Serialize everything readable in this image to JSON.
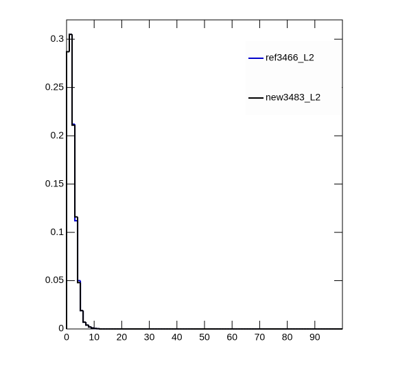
{
  "chart_data": {
    "type": "histogram",
    "bins": [
      0,
      1,
      2,
      3,
      4,
      5,
      6,
      7,
      8,
      9,
      10,
      11,
      12,
      13,
      14,
      15,
      16,
      17,
      18,
      19,
      20,
      21,
      22,
      23,
      24,
      25,
      26,
      27,
      28,
      29,
      30,
      31,
      32,
      33,
      34,
      35,
      36,
      37,
      38,
      39,
      40,
      41,
      42,
      43,
      44,
      45,
      46,
      47,
      48,
      49,
      50,
      51,
      52,
      53,
      54,
      55,
      56,
      57,
      58,
      59,
      60,
      61,
      62,
      63,
      64,
      65,
      66,
      67,
      68,
      69,
      70,
      71,
      72,
      73,
      74,
      75,
      76,
      77,
      78,
      79,
      80,
      81,
      82,
      83,
      84,
      85,
      86,
      87,
      88,
      89,
      90,
      91,
      92,
      93,
      94,
      95,
      96,
      97,
      98,
      99,
      100
    ],
    "series": [
      {
        "name": "ref3466_L2",
        "color": "#0000cc",
        "values": [
          0.287,
          0.305,
          0.212,
          0.112,
          0.05,
          0.019,
          0.007,
          0.004,
          0.002,
          0.001,
          0.0005,
          0.0003,
          0,
          0,
          0,
          0,
          0,
          0,
          0,
          0,
          0,
          0,
          0,
          0,
          0,
          0,
          0,
          0,
          0,
          0,
          0,
          0,
          0,
          0,
          0,
          0,
          0,
          0,
          0,
          0,
          0,
          0,
          0,
          0,
          0,
          0,
          0,
          0,
          0,
          0,
          0,
          0,
          0,
          0,
          0,
          0,
          0,
          0,
          0,
          0,
          0,
          0,
          0,
          0,
          0,
          0,
          0,
          0,
          0,
          0,
          0,
          0,
          0,
          0,
          0,
          0,
          0,
          0,
          0,
          0,
          0,
          0,
          0,
          0,
          0,
          0,
          0,
          0,
          0,
          0,
          0,
          0,
          0,
          0,
          0,
          0,
          0,
          0,
          0,
          0
        ]
      },
      {
        "name": "new3483_L2",
        "color": "#000000",
        "values": [
          0.287,
          0.305,
          0.211,
          0.116,
          0.048,
          0.019,
          0.007,
          0.004,
          0.002,
          0.001,
          0.0005,
          0.0003,
          0,
          0,
          0,
          0,
          0,
          0,
          0,
          0,
          0,
          0,
          0,
          0,
          0,
          0,
          0,
          0,
          0,
          0,
          0,
          0,
          0,
          0,
          0,
          0,
          0,
          0,
          0,
          0,
          0,
          0,
          0,
          0,
          0,
          0,
          0,
          0,
          0,
          0,
          0,
          0,
          0,
          0,
          0,
          0,
          0,
          0,
          0,
          0,
          0,
          0,
          0,
          0,
          0,
          0,
          0,
          0,
          0,
          0,
          0,
          0,
          0,
          0,
          0,
          0,
          0,
          0,
          0,
          0,
          0,
          0,
          0,
          0,
          0,
          0,
          0,
          0,
          0,
          0,
          0,
          0,
          0,
          0,
          0,
          0,
          0,
          0,
          0,
          0
        ]
      }
    ],
    "xlim": [
      0,
      100
    ],
    "xticks": [
      0,
      10,
      20,
      30,
      40,
      50,
      60,
      70,
      80,
      90
    ],
    "ylim": [
      0,
      0.32
    ],
    "yticks": [
      0,
      0.05,
      0.1,
      0.15,
      0.2,
      0.25,
      0.3
    ],
    "legend": "upper-right"
  }
}
